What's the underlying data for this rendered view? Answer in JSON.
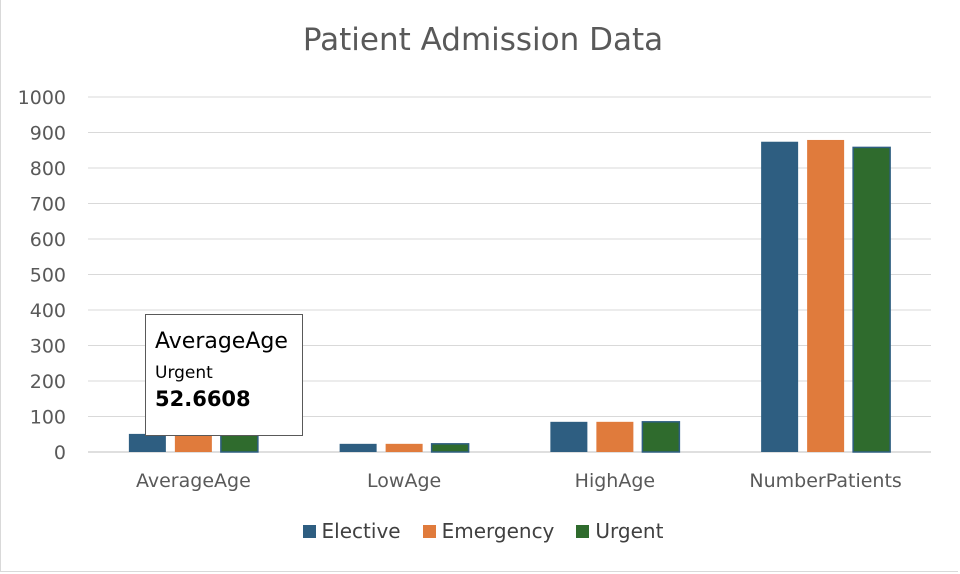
{
  "chart_data": {
    "type": "bar",
    "title": "Patient Admission Data",
    "categories": [
      "AverageAge",
      "LowAge",
      "HighAge",
      "NumberPatients"
    ],
    "series": [
      {
        "name": "Elective",
        "color": "#2e5e81",
        "values": [
          51,
          23,
          85,
          874
        ]
      },
      {
        "name": "Emergency",
        "color": "#e07b3c",
        "values": [
          52,
          23,
          85,
          879
        ]
      },
      {
        "name": "Urgent",
        "color": "#2f6b2d",
        "values": [
          52.6608,
          23,
          85,
          858
        ]
      }
    ],
    "ylim": [
      0,
      1000
    ],
    "yticks": [
      0,
      100,
      200,
      300,
      400,
      500,
      600,
      700,
      800,
      900,
      1000
    ],
    "grid": true,
    "legend_position": "bottom",
    "tooltip": {
      "category": "AverageAge",
      "series": "Urgent",
      "value": "52.6608"
    }
  }
}
